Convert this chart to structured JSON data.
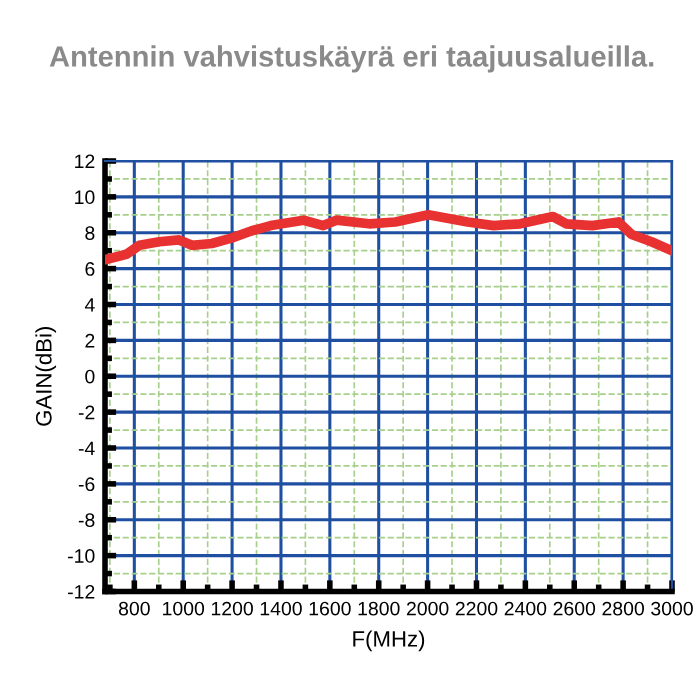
{
  "chart_data": {
    "type": "line",
    "title": "Antennin vahvistuskäyrä eri taajuusalueilla.",
    "xlabel": "F(MHz)",
    "ylabel": "GAIN(dBi)",
    "x": [
      680,
      768,
      821,
      902,
      983,
      1036,
      1117,
      1197,
      1278,
      1358,
      1493,
      1573,
      1627,
      1761,
      1868,
      2003,
      2164,
      2271,
      2379,
      2513,
      2567,
      2674,
      2781,
      2835,
      2916,
      3000
    ],
    "series": [
      {
        "color": "#e83232",
        "values": [
          6.5,
          6.8,
          7.3,
          7.5,
          7.6,
          7.3,
          7.4,
          7.7,
          8.1,
          8.4,
          8.7,
          8.4,
          8.7,
          8.5,
          8.6,
          9.0,
          8.6,
          8.4,
          8.5,
          8.9,
          8.5,
          8.4,
          8.6,
          7.9,
          7.5,
          7.0
        ]
      }
    ],
    "xlim": [
      680,
      3000
    ],
    "ylim": [
      -12,
      12
    ],
    "xticks": [
      {
        "value": 700,
        "label": null
      },
      800,
      {
        "value": 900,
        "label": null
      },
      1000,
      {
        "value": 1100,
        "label": null
      },
      1200,
      {
        "value": 1300,
        "label": null
      },
      1400,
      {
        "value": 1500,
        "label": null
      },
      1600,
      {
        "value": 1700,
        "label": null
      },
      1800,
      {
        "value": 1900,
        "label": null
      },
      2000,
      {
        "value": 2100,
        "label": null
      },
      2200,
      {
        "value": 2300,
        "label": null
      },
      2400,
      {
        "value": 2500,
        "label": null
      },
      2600,
      {
        "value": 2700,
        "label": null
      },
      2800,
      {
        "value": 2900,
        "label": null
      },
      3000
    ],
    "yticks": [
      -12,
      {
        "value": -11,
        "label": null
      },
      -10,
      {
        "value": -9,
        "label": null
      },
      -8,
      {
        "value": -7,
        "label": null
      },
      -6,
      {
        "value": -5,
        "label": null
      },
      -4,
      {
        "value": -3,
        "label": null
      },
      -2,
      {
        "value": -1,
        "label": null
      },
      0,
      {
        "value": 1,
        "label": null
      },
      2,
      {
        "value": 3,
        "label": null
      },
      4,
      {
        "value": 5,
        "label": null
      },
      6,
      {
        "value": 7,
        "label": null
      },
      8,
      {
        "value": 9,
        "label": null
      },
      10,
      {
        "value": 11,
        "label": null
      },
      12
    ],
    "grid": true,
    "marker": "none",
    "line_style": "solid",
    "legend": false
  }
}
